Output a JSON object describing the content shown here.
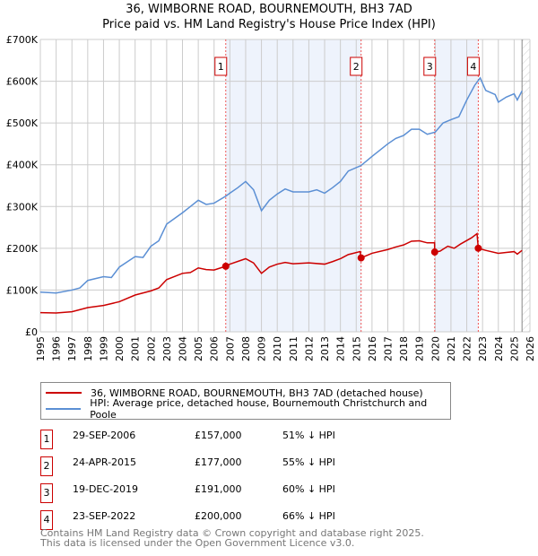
{
  "chart_data": {
    "type": "line",
    "title": "36, WIMBORNE ROAD, BOURNEMOUTH, BH3 7AD",
    "subtitle": "Price paid vs. HM Land Registry's House Price Index (HPI)",
    "xlim": [
      1995,
      2026
    ],
    "ylim": [
      0,
      700
    ],
    "y_ticks": [
      "£0",
      "£100K",
      "£200K",
      "£300K",
      "£400K",
      "£500K",
      "£600K",
      "£700K"
    ],
    "x_ticks": [
      "1995",
      "1996",
      "1997",
      "1998",
      "1999",
      "2000",
      "2001",
      "2002",
      "2003",
      "2004",
      "2005",
      "2006",
      "2007",
      "2008",
      "2009",
      "2010",
      "2011",
      "2012",
      "2013",
      "2014",
      "2015",
      "2016",
      "2017",
      "2018",
      "2019",
      "2020",
      "2021",
      "2022",
      "2023",
      "2024",
      "2025",
      "2026"
    ],
    "grid": true,
    "shaded_ranges": [
      [
        2006.75,
        2015.31
      ],
      [
        2019.97,
        2022.73
      ]
    ],
    "hatched_from": 2025.5,
    "colors": {
      "property": "#cc0000",
      "hpi": "#5b8fd4",
      "shade": "#eef3fc"
    },
    "series": [
      {
        "name": "36, WIMBORNE ROAD, BOURNEMOUTH, BH3 7AD (detached house)",
        "color": "#cc0000",
        "x": [
          1995,
          1996,
          1997,
          1998,
          1999,
          2000,
          2001,
          2002,
          2002.5,
          2003,
          2004,
          2004.5,
          2005,
          2005.5,
          2006,
          2006.74,
          2007,
          2008,
          2008.5,
          2009,
          2009.5,
          2010,
          2010.5,
          2011,
          2012,
          2013,
          2013.5,
          2014,
          2014.5,
          2015.25,
          2015.31,
          2016,
          2017,
          2017.5,
          2018,
          2018.5,
          2019,
          2019.5,
          2019.96,
          2019.97,
          2020.3,
          2020.8,
          2021.2,
          2021.6,
          2022.3,
          2022.65,
          2022.73,
          2023.2,
          2024,
          2024.5,
          2025,
          2025.2,
          2025.5
        ],
        "y": [
          46,
          45,
          48,
          58,
          63,
          72,
          88,
          98,
          105,
          125,
          140,
          142,
          153,
          149,
          148,
          157,
          162,
          175,
          165,
          140,
          155,
          162,
          166,
          163,
          165,
          162,
          168,
          175,
          185,
          192,
          177,
          188,
          197,
          203,
          208,
          217,
          218,
          213,
          213,
          191,
          193,
          205,
          200,
          210,
          225,
          235,
          200,
          195,
          188,
          190,
          192,
          186,
          195
        ]
      },
      {
        "name": "HPI: Average price, detached house, Bournemouth Christchurch and Poole",
        "color": "#5b8fd4",
        "x": [
          1995,
          1996,
          1997,
          1997.5,
          1998,
          1999,
          1999.5,
          2000,
          2001,
          2001.5,
          2002,
          2002.5,
          2003,
          2004,
          2004.5,
          2005,
          2005.5,
          2006,
          2006.75,
          2007,
          2007.5,
          2008,
          2008.5,
          2009,
          2009.5,
          2010,
          2010.5,
          2011,
          2012,
          2012.5,
          2013,
          2013.5,
          2014,
          2014.5,
          2015.3,
          2016,
          2016.5,
          2017,
          2017.5,
          2018,
          2018.5,
          2019,
          2019.5,
          2020,
          2020.5,
          2021,
          2021.5,
          2022,
          2022.5,
          2022.85,
          2023.2,
          2023.8,
          2024,
          2024.5,
          2025,
          2025.2,
          2025.5
        ],
        "y": [
          95,
          93,
          100,
          105,
          123,
          132,
          130,
          155,
          180,
          178,
          205,
          218,
          258,
          285,
          300,
          315,
          305,
          308,
          325,
          332,
          345,
          360,
          340,
          290,
          315,
          330,
          342,
          335,
          335,
          340,
          332,
          345,
          360,
          385,
          398,
          420,
          435,
          450,
          463,
          470,
          485,
          485,
          473,
          478,
          500,
          508,
          515,
          555,
          590,
          608,
          578,
          568,
          550,
          562,
          570,
          555,
          577
        ]
      }
    ],
    "sales": [
      {
        "n": "1",
        "x": 2006.74,
        "y": 157,
        "date": "29-SEP-2006",
        "price": "£157,000",
        "hpi": "51% ↓ HPI"
      },
      {
        "n": "2",
        "x": 2015.31,
        "y": 177,
        "date": "24-APR-2015",
        "price": "£177,000",
        "hpi": "55% ↓ HPI"
      },
      {
        "n": "3",
        "x": 2019.97,
        "y": 191,
        "date": "19-DEC-2019",
        "price": "£191,000",
        "hpi": "60% ↓ HPI"
      },
      {
        "n": "4",
        "x": 2022.73,
        "y": 200,
        "date": "23-SEP-2022",
        "price": "£200,000",
        "hpi": "66% ↓ HPI"
      }
    ]
  },
  "footer": {
    "line1": "Contains HM Land Registry data © Crown copyright and database right 2025.",
    "line2": "This data is licensed under the Open Government Licence v3.0."
  }
}
